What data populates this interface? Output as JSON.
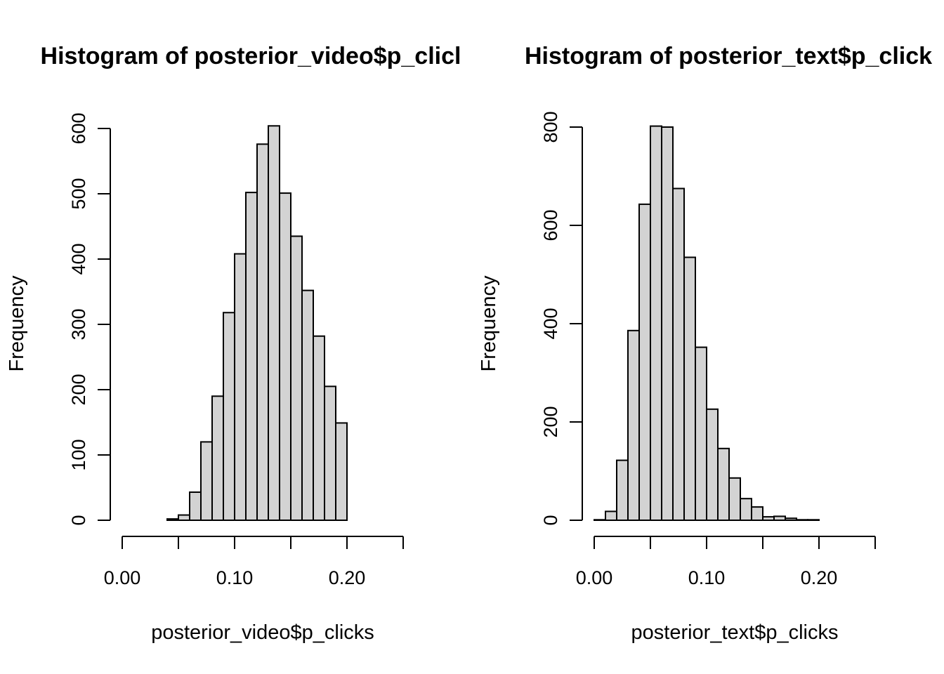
{
  "chart_data": [
    {
      "type": "bar",
      "title": "Histogram of posterior_video$p_clicl",
      "xlabel": "posterior_video$p_clicks",
      "ylabel": "Frequency",
      "xlim": [
        0.0,
        0.25
      ],
      "ylim": [
        0,
        600
      ],
      "xticks": [
        0.0,
        0.05,
        0.1,
        0.15,
        0.2,
        0.25
      ],
      "xtick_labels": [
        "0.00",
        "0.10",
        "0.20"
      ],
      "xtick_label_values": [
        0.0,
        0.1,
        0.2
      ],
      "yticks": [
        0,
        100,
        200,
        300,
        400,
        500,
        600
      ],
      "ytick_labels": [
        "0",
        "100",
        "200",
        "300",
        "400",
        "500",
        "600"
      ],
      "bin_width": 0.01,
      "bins": [
        {
          "start": 0.04,
          "end": 0.05,
          "count": 2
        },
        {
          "start": 0.05,
          "end": 0.06,
          "count": 8
        },
        {
          "start": 0.06,
          "end": 0.07,
          "count": 43
        },
        {
          "start": 0.07,
          "end": 0.08,
          "count": 120
        },
        {
          "start": 0.08,
          "end": 0.09,
          "count": 190
        },
        {
          "start": 0.09,
          "end": 0.1,
          "count": 318
        },
        {
          "start": 0.1,
          "end": 0.11,
          "count": 408
        },
        {
          "start": 0.11,
          "end": 0.12,
          "count": 502
        },
        {
          "start": 0.12,
          "end": 0.13,
          "count": 576
        },
        {
          "start": 0.13,
          "end": 0.14,
          "count": 604
        },
        {
          "start": 0.14,
          "end": 0.15,
          "count": 501
        },
        {
          "start": 0.15,
          "end": 0.16,
          "count": 435
        },
        {
          "start": 0.16,
          "end": 0.17,
          "count": 352
        },
        {
          "start": 0.17,
          "end": 0.18,
          "count": 282
        },
        {
          "start": 0.18,
          "end": 0.19,
          "count": 205
        },
        {
          "start": 0.19,
          "end": 0.2,
          "count": 149
        }
      ]
    },
    {
      "type": "bar",
      "title": "Histogram of posterior_text$p_click",
      "xlabel": "posterior_text$p_clicks",
      "ylabel": "Frequency",
      "xlim": [
        0.0,
        0.25
      ],
      "ylim": [
        0,
        800
      ],
      "xticks": [
        0.0,
        0.05,
        0.1,
        0.15,
        0.2,
        0.25
      ],
      "xtick_labels": [
        "0.00",
        "0.10",
        "0.20"
      ],
      "xtick_label_values": [
        0.0,
        0.1,
        0.2
      ],
      "yticks": [
        0,
        200,
        400,
        600,
        800
      ],
      "ytick_labels": [
        "0",
        "200",
        "400",
        "600",
        "800"
      ],
      "bin_width": 0.01,
      "bins": [
        {
          "start": 0.0,
          "end": 0.01,
          "count": 1
        },
        {
          "start": 0.01,
          "end": 0.02,
          "count": 18
        },
        {
          "start": 0.02,
          "end": 0.03,
          "count": 122
        },
        {
          "start": 0.03,
          "end": 0.04,
          "count": 386
        },
        {
          "start": 0.04,
          "end": 0.05,
          "count": 643
        },
        {
          "start": 0.05,
          "end": 0.06,
          "count": 802
        },
        {
          "start": 0.06,
          "end": 0.07,
          "count": 800
        },
        {
          "start": 0.07,
          "end": 0.08,
          "count": 675
        },
        {
          "start": 0.08,
          "end": 0.09,
          "count": 535
        },
        {
          "start": 0.09,
          "end": 0.1,
          "count": 352
        },
        {
          "start": 0.1,
          "end": 0.11,
          "count": 226
        },
        {
          "start": 0.11,
          "end": 0.12,
          "count": 146
        },
        {
          "start": 0.12,
          "end": 0.13,
          "count": 86
        },
        {
          "start": 0.13,
          "end": 0.14,
          "count": 44
        },
        {
          "start": 0.14,
          "end": 0.15,
          "count": 27
        },
        {
          "start": 0.15,
          "end": 0.16,
          "count": 7
        },
        {
          "start": 0.16,
          "end": 0.17,
          "count": 8
        },
        {
          "start": 0.17,
          "end": 0.18,
          "count": 4
        },
        {
          "start": 0.18,
          "end": 0.19,
          "count": 1
        },
        {
          "start": 0.19,
          "end": 0.2,
          "count": 1
        }
      ]
    }
  ]
}
